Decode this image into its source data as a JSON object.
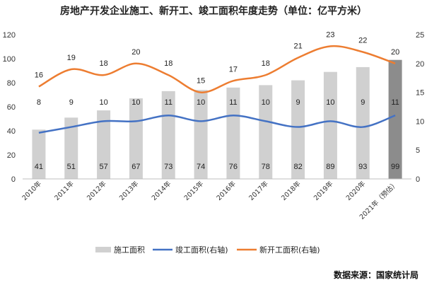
{
  "chart_data": {
    "type": "bar",
    "title": "房地产开发企业施工、新开工、竣工面积年度走势（单位：亿平方米）",
    "categories": [
      "2010年",
      "2011年",
      "2012年",
      "2013年",
      "2014年",
      "2015年",
      "2016年",
      "2017年",
      "2018年",
      "2019年",
      "2020年",
      "2021年（预估）"
    ],
    "series": [
      {
        "name": "施工面积",
        "type": "bar",
        "axis": "left",
        "values": [
          41,
          51,
          57,
          67,
          73,
          74,
          76,
          78,
          82,
          89,
          93,
          99
        ]
      },
      {
        "name": "竣工面积(右轴)",
        "type": "line",
        "axis": "right",
        "values": [
          8,
          9,
          10,
          10,
          11,
          10,
          11,
          10,
          9,
          10,
          9,
          11
        ]
      },
      {
        "name": "新开工面积(右轴)",
        "type": "line",
        "axis": "right",
        "values": [
          16,
          19,
          18,
          20,
          18,
          15,
          17,
          18,
          21,
          23,
          22,
          20
        ]
      }
    ],
    "ylim_left": [
      0,
      120
    ],
    "ylim_right": [
      0,
      25
    ],
    "yticks_left": [
      "0",
      "20",
      "40",
      "60",
      "80",
      "100",
      "120"
    ],
    "yticks_right": [
      "0",
      "5",
      "10",
      "15",
      "20",
      "25"
    ],
    "grid": false,
    "legend_position": "bottom",
    "colors": {
      "bar": "#d0d0d0",
      "bar_highlight": "#8c8c8c",
      "completed": "#4472c4",
      "new_start": "#ed7d31"
    },
    "source": "数据来源：国家统计局"
  }
}
